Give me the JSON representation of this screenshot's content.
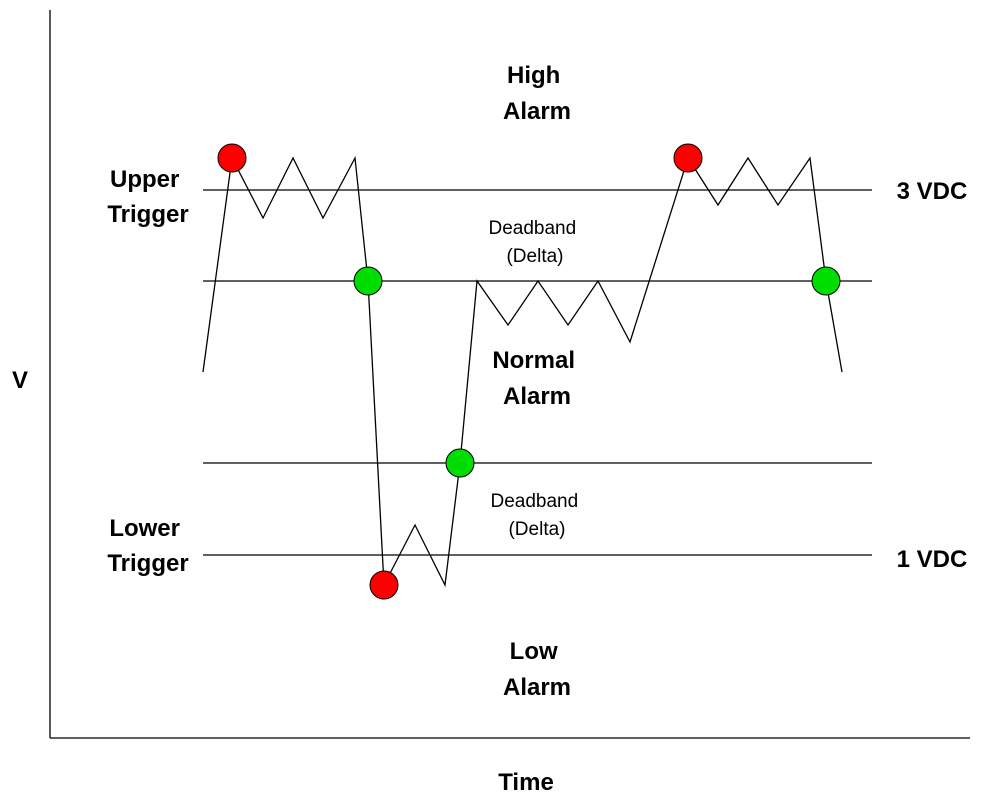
{
  "axes": {
    "y_label": "V",
    "x_label": "Time"
  },
  "regions": {
    "high_alarm": [
      "High",
      "Alarm"
    ],
    "normal_alarm": [
      "Normal",
      "Alarm"
    ],
    "low_alarm": [
      "Low",
      "Alarm"
    ]
  },
  "triggers": {
    "upper": [
      "Upper",
      "Trigger"
    ],
    "lower": [
      "Lower",
      "Trigger"
    ]
  },
  "deadbands": {
    "upper": [
      "Deadband",
      "(Delta)"
    ],
    "lower": [
      "Deadband",
      "(Delta)"
    ]
  },
  "levels": {
    "upper_value": "3 VDC",
    "lower_value": "1 VDC"
  },
  "markers": {
    "alarm_color": "#ff0000",
    "reset_color": "#00dd00",
    "alarm_count": 3,
    "reset_count": 3
  }
}
